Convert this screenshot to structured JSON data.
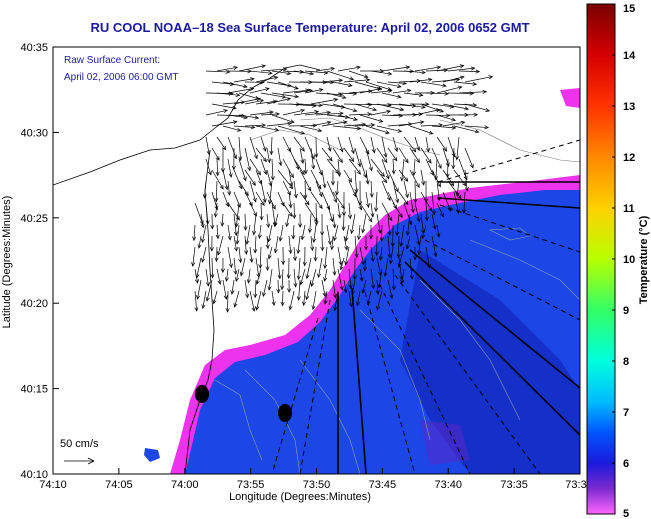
{
  "title": "RU COOL  NOAA–18  Sea Surface Temperature:  April 02, 2006 0652 GMT",
  "overlay": {
    "line1": "Raw Surface Current:",
    "line2": "April 02, 2006 06:00 GMT"
  },
  "scale": {
    "label": "50 cm/s"
  },
  "x_axis": {
    "label": "Longitude (Degrees:Minutes)",
    "ticks": [
      "74:10",
      "74:05",
      "74:00",
      "73:55",
      "73:50",
      "73:45",
      "73:40",
      "73:35",
      "73:3"
    ]
  },
  "y_axis": {
    "label": "Latitude (Degrees:Minutes)",
    "ticks": [
      "40:35",
      "40:30",
      "40:25",
      "40:20",
      "40:15",
      "40:10"
    ]
  },
  "colorbar": {
    "label": "Temperature (°C)",
    "ticks": [
      "15",
      "14",
      "13",
      "12",
      "11",
      "10",
      "9",
      "8",
      "7",
      "6",
      "5"
    ],
    "colors": [
      "#8b0000",
      "#cc0000",
      "#ff2200",
      "#ff7700",
      "#ffcc00",
      "#ccff00",
      "#44ff44",
      "#00ffcc",
      "#00ccff",
      "#0066ff",
      "#1a1adc",
      "#5a28c8",
      "#cc33cc",
      "#ff66ff"
    ]
  },
  "colors": {
    "ocean": "#1c46e6",
    "warm_ocean": "#1530c8",
    "cold_edge": "#ee33ee",
    "land": "#ffffff",
    "title": "#1a1aa0"
  }
}
